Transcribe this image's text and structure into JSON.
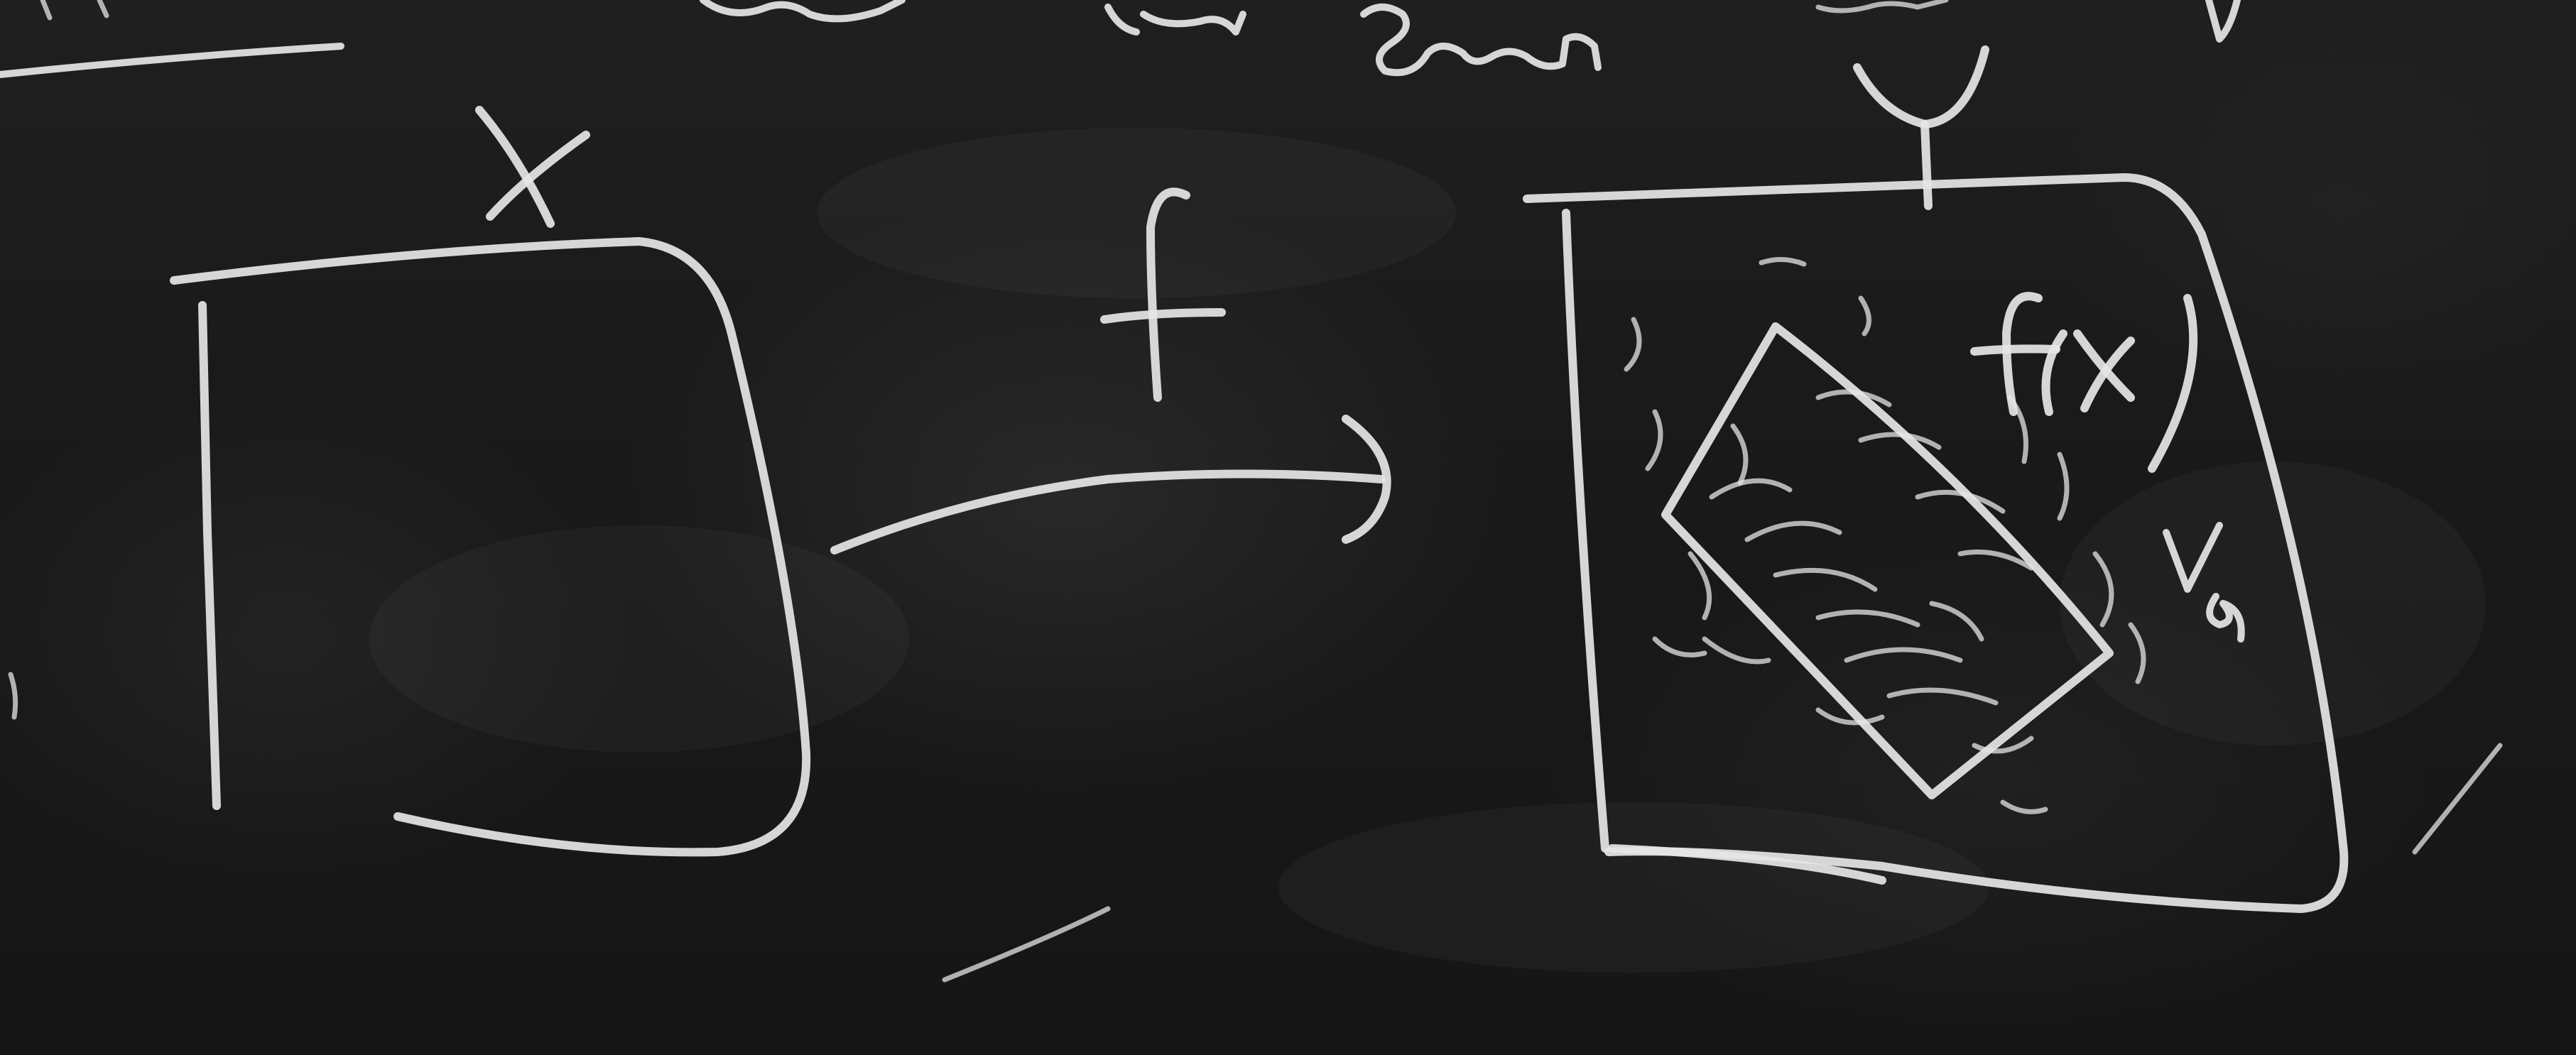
{
  "board": {
    "domain_labels": {
      "left_set": "X",
      "right_set": "Y",
      "map": "f",
      "image": "f(X)"
    },
    "colors": {
      "chalk": "#e6e6e6",
      "board": "#1a1a1a"
    }
  }
}
